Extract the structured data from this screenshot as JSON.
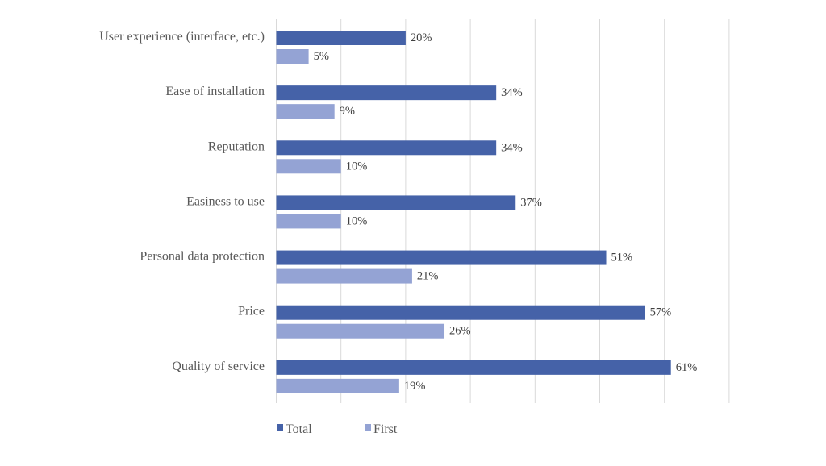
{
  "chart_data": {
    "type": "bar",
    "orientation": "horizontal",
    "title": "",
    "xlabel": "",
    "ylabel": "",
    "categories": [
      "User experience (interface, etc.)",
      "Ease of installation",
      "Reputation",
      "Easiness to use",
      "Personal data protection",
      "Price",
      "Quality of service"
    ],
    "series": [
      {
        "name": "Total",
        "color": "#4562a8",
        "values": [
          20,
          34,
          34,
          37,
          51,
          57,
          61
        ],
        "labels": [
          "20%",
          "34%",
          "34%",
          "37%",
          "51%",
          "57%",
          "61%"
        ]
      },
      {
        "name": "First",
        "color": "#94a3d4",
        "values": [
          5,
          9,
          10,
          10,
          21,
          26,
          19
        ],
        "labels": [
          "5%",
          "9%",
          "10%",
          "10%",
          "21%",
          "26%",
          "19%"
        ]
      }
    ],
    "xlim": [
      0,
      70
    ],
    "x_unit": "%",
    "grid": "vertical, every 10%",
    "x_tick_labels_shown": false,
    "legend": "bottom"
  }
}
